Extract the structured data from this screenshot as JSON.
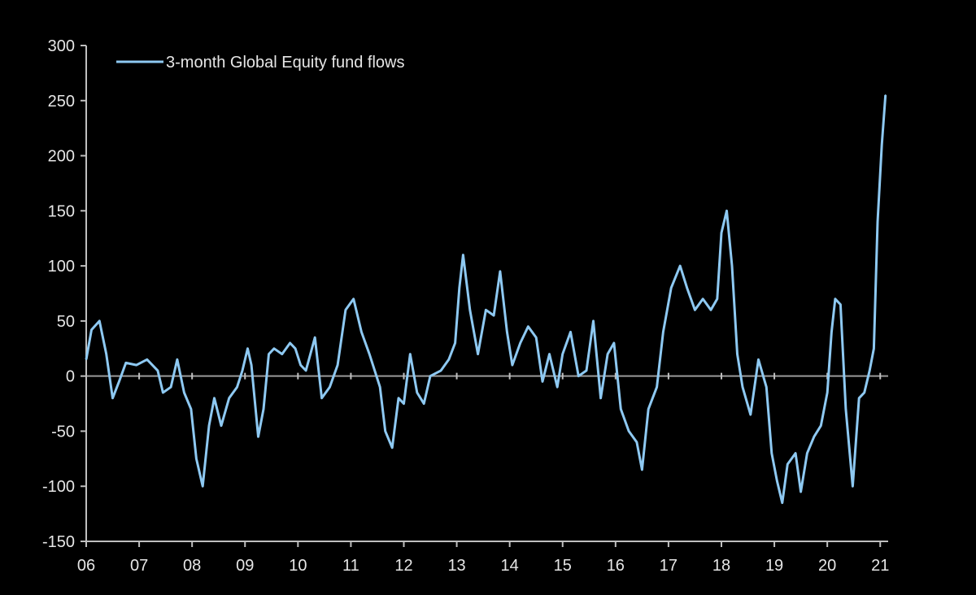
{
  "chart_data": {
    "type": "line",
    "title": "",
    "xlabel": "",
    "ylabel": "",
    "ylim": [
      -150,
      300
    ],
    "yticks": [
      300,
      250,
      200,
      150,
      100,
      50,
      0,
      -50,
      -100,
      -150
    ],
    "xlim": [
      2006,
      2021.15
    ],
    "xticks": [
      {
        "value": 2006,
        "label": "06"
      },
      {
        "value": 2007,
        "label": "07"
      },
      {
        "value": 2008,
        "label": "08"
      },
      {
        "value": 2009,
        "label": "09"
      },
      {
        "value": 2010,
        "label": "10"
      },
      {
        "value": 2011,
        "label": "11"
      },
      {
        "value": 2012,
        "label": "12"
      },
      {
        "value": 2013,
        "label": "13"
      },
      {
        "value": 2014,
        "label": "14"
      },
      {
        "value": 2015,
        "label": "15"
      },
      {
        "value": 2016,
        "label": "16"
      },
      {
        "value": 2017,
        "label": "17"
      },
      {
        "value": 2018,
        "label": "18"
      },
      {
        "value": 2019,
        "label": "19"
      },
      {
        "value": 2020,
        "label": "20"
      },
      {
        "value": 2021,
        "label": "21"
      }
    ],
    "grid": false,
    "legend_position": "top-left",
    "colors": {
      "series": "#8ec9f2",
      "axis": "#bfbfbf",
      "text": "#e6e6e6",
      "background": "#000000"
    },
    "series": [
      {
        "name": "3-month Global Equity fund flows",
        "points": [
          [
            2006.0,
            15
          ],
          [
            2006.1,
            42
          ],
          [
            2006.25,
            50
          ],
          [
            2006.38,
            20
          ],
          [
            2006.5,
            -20
          ],
          [
            2006.62,
            -5
          ],
          [
            2006.75,
            12
          ],
          [
            2006.95,
            10
          ],
          [
            2007.15,
            15
          ],
          [
            2007.35,
            5
          ],
          [
            2007.45,
            -15
          ],
          [
            2007.6,
            -10
          ],
          [
            2007.72,
            15
          ],
          [
            2007.85,
            -15
          ],
          [
            2007.98,
            -30
          ],
          [
            2008.08,
            -75
          ],
          [
            2008.2,
            -100
          ],
          [
            2008.32,
            -45
          ],
          [
            2008.42,
            -20
          ],
          [
            2008.55,
            -45
          ],
          [
            2008.7,
            -20
          ],
          [
            2008.85,
            -10
          ],
          [
            2008.95,
            5
          ],
          [
            2009.05,
            25
          ],
          [
            2009.12,
            10
          ],
          [
            2009.25,
            -55
          ],
          [
            2009.35,
            -30
          ],
          [
            2009.45,
            20
          ],
          [
            2009.55,
            25
          ],
          [
            2009.7,
            20
          ],
          [
            2009.85,
            30
          ],
          [
            2009.95,
            25
          ],
          [
            2010.05,
            10
          ],
          [
            2010.15,
            5
          ],
          [
            2010.32,
            35
          ],
          [
            2010.45,
            -20
          ],
          [
            2010.6,
            -10
          ],
          [
            2010.75,
            10
          ],
          [
            2010.9,
            60
          ],
          [
            2011.05,
            70
          ],
          [
            2011.2,
            40
          ],
          [
            2011.35,
            20
          ],
          [
            2011.55,
            -10
          ],
          [
            2011.65,
            -50
          ],
          [
            2011.78,
            -65
          ],
          [
            2011.9,
            -20
          ],
          [
            2012.0,
            -25
          ],
          [
            2012.12,
            20
          ],
          [
            2012.25,
            -15
          ],
          [
            2012.38,
            -25
          ],
          [
            2012.5,
            0
          ],
          [
            2012.7,
            5
          ],
          [
            2012.85,
            15
          ],
          [
            2012.97,
            30
          ],
          [
            2013.05,
            80
          ],
          [
            2013.12,
            110
          ],
          [
            2013.25,
            60
          ],
          [
            2013.4,
            20
          ],
          [
            2013.55,
            60
          ],
          [
            2013.7,
            55
          ],
          [
            2013.82,
            95
          ],
          [
            2013.95,
            40
          ],
          [
            2014.05,
            10
          ],
          [
            2014.2,
            30
          ],
          [
            2014.35,
            45
          ],
          [
            2014.5,
            35
          ],
          [
            2014.62,
            -5
          ],
          [
            2014.75,
            20
          ],
          [
            2014.9,
            -10
          ],
          [
            2015.0,
            20
          ],
          [
            2015.15,
            40
          ],
          [
            2015.3,
            0
          ],
          [
            2015.45,
            5
          ],
          [
            2015.58,
            50
          ],
          [
            2015.72,
            -20
          ],
          [
            2015.85,
            20
          ],
          [
            2015.97,
            30
          ],
          [
            2016.1,
            -30
          ],
          [
            2016.25,
            -50
          ],
          [
            2016.4,
            -60
          ],
          [
            2016.5,
            -85
          ],
          [
            2016.62,
            -30
          ],
          [
            2016.78,
            -10
          ],
          [
            2016.9,
            40
          ],
          [
            2017.05,
            80
          ],
          [
            2017.22,
            100
          ],
          [
            2017.35,
            80
          ],
          [
            2017.5,
            60
          ],
          [
            2017.65,
            70
          ],
          [
            2017.8,
            60
          ],
          [
            2017.92,
            70
          ],
          [
            2018.0,
            130
          ],
          [
            2018.1,
            150
          ],
          [
            2018.2,
            100
          ],
          [
            2018.3,
            20
          ],
          [
            2018.4,
            -10
          ],
          [
            2018.55,
            -35
          ],
          [
            2018.7,
            15
          ],
          [
            2018.85,
            -10
          ],
          [
            2018.95,
            -70
          ],
          [
            2019.05,
            -95
          ],
          [
            2019.15,
            -115
          ],
          [
            2019.25,
            -80
          ],
          [
            2019.4,
            -70
          ],
          [
            2019.5,
            -105
          ],
          [
            2019.62,
            -70
          ],
          [
            2019.75,
            -55
          ],
          [
            2019.88,
            -45
          ],
          [
            2020.0,
            -15
          ],
          [
            2020.08,
            40
          ],
          [
            2020.15,
            70
          ],
          [
            2020.25,
            65
          ],
          [
            2020.35,
            -30
          ],
          [
            2020.48,
            -100
          ],
          [
            2020.6,
            -20
          ],
          [
            2020.7,
            -15
          ],
          [
            2020.8,
            5
          ],
          [
            2020.88,
            25
          ],
          [
            2020.95,
            140
          ],
          [
            2021.03,
            210
          ],
          [
            2021.1,
            255
          ]
        ]
      }
    ]
  }
}
